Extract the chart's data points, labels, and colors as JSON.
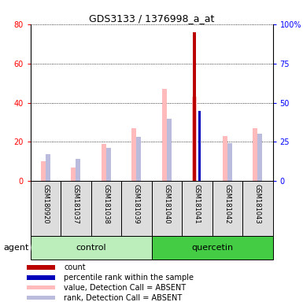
{
  "title": "GDS3133 / 1376998_a_at",
  "samples": [
    "GSM180920",
    "GSM181037",
    "GSM181038",
    "GSM181039",
    "GSM181040",
    "GSM181041",
    "GSM181042",
    "GSM181043"
  ],
  "group_colors": [
    "#bbeebb",
    "#44cc44"
  ],
  "count_values": [
    0,
    0,
    0,
    0,
    0,
    76,
    0,
    0
  ],
  "percentile_rank_values": [
    0,
    0,
    0,
    0,
    0,
    45,
    0,
    0
  ],
  "value_absent": [
    10,
    7,
    19,
    27,
    47,
    43,
    23,
    27
  ],
  "rank_absent": [
    17,
    14,
    21,
    28,
    40,
    0,
    24,
    30
  ],
  "color_count": "#bb0000",
  "color_percentile": "#0000bb",
  "color_value_absent": "#ffbbbb",
  "color_rank_absent": "#bbbbdd",
  "ylim_left": [
    0,
    80
  ],
  "ylim_right": [
    0,
    100
  ],
  "yticks_left": [
    0,
    20,
    40,
    60,
    80
  ],
  "yticks_right": [
    0,
    25,
    50,
    75,
    100
  ],
  "ytick_labels_right": [
    "0",
    "25",
    "50",
    "75",
    "100%"
  ],
  "bar_width": 0.15,
  "legend_items": [
    {
      "label": "count",
      "color": "#bb0000"
    },
    {
      "label": "percentile rank within the sample",
      "color": "#0000bb"
    },
    {
      "label": "value, Detection Call = ABSENT",
      "color": "#ffbbbb"
    },
    {
      "label": "rank, Detection Call = ABSENT",
      "color": "#bbbbdd"
    }
  ],
  "group_extents": [
    {
      "start": 0,
      "end": 3,
      "label": "control",
      "color_idx": 0
    },
    {
      "start": 4,
      "end": 7,
      "label": "quercetin",
      "color_idx": 1
    }
  ]
}
